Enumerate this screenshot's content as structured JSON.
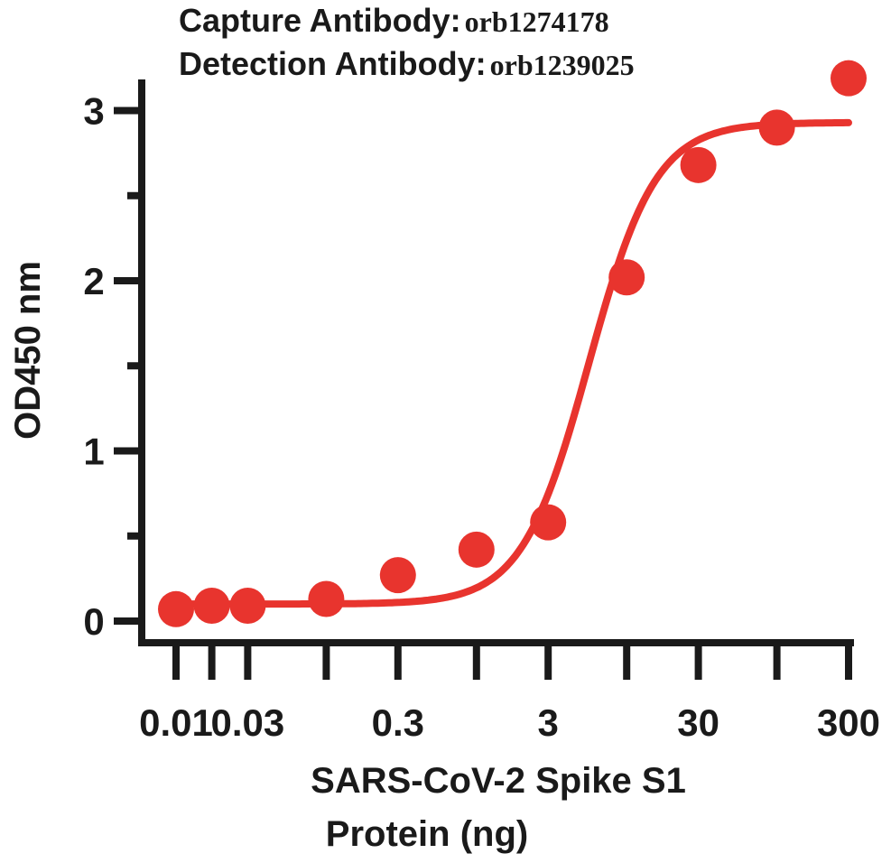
{
  "header": {
    "capture_label": "Capture Antibody:",
    "capture_value": "orb1274178",
    "detection_label": "Detection Antibody:",
    "detection_value": "orb1239025"
  },
  "colors": {
    "series": "#e8342e",
    "axis": "#1a1a1a"
  },
  "chart_data": {
    "type": "scatter",
    "xscale": "log",
    "xlabel": [
      "SARS-CoV-2 Spike S1",
      "Protein (ng)"
    ],
    "ylabel": "OD450 nm",
    "ylim": [
      0,
      3.2
    ],
    "yticks": [
      0,
      1,
      2,
      3
    ],
    "x_positions": [
      0.01,
      0.03,
      0.3,
      3,
      30,
      300
    ],
    "x_tick_labels": [
      "0.01",
      "0.03",
      "0.3",
      "3",
      "30",
      "300"
    ],
    "grid": false,
    "legend": "none",
    "series": [
      {
        "x": [
          0.01,
          0.0173,
          0.03,
          0.1,
          0.3,
          1,
          3,
          10,
          30,
          100,
          300
        ],
        "y": [
          0.07,
          0.09,
          0.09,
          0.13,
          0.27,
          0.42,
          0.58,
          2.02,
          2.68,
          2.9,
          3.19
        ],
        "marker": "circle",
        "fit": "four-parameter logistic"
      }
    ]
  }
}
